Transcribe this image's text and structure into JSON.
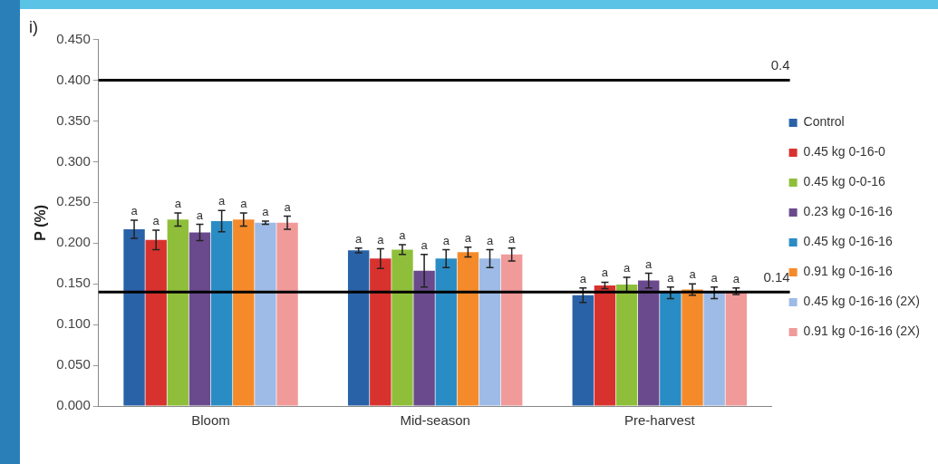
{
  "chart_data": {
    "type": "bar",
    "title": "i)",
    "ylabel": "P (%)",
    "categories": [
      "Bloom",
      "Mid-season",
      "Pre-harvest"
    ],
    "series": [
      {
        "name": "Control",
        "color": "#2a62a8",
        "values": [
          0.217,
          0.191,
          0.136
        ],
        "errors": [
          0.011,
          0.003,
          0.009
        ],
        "value_labels": [
          "a",
          "a",
          "a"
        ]
      },
      {
        "name": "0.45 kg 0-16-0",
        "color": "#d8322f",
        "values": [
          0.204,
          0.181,
          0.148
        ],
        "errors": [
          0.012,
          0.012,
          0.004
        ],
        "value_labels": [
          "a",
          "a",
          "a"
        ]
      },
      {
        "name": "0.45 kg 0-0-16",
        "color": "#8fbf3a",
        "values": [
          0.229,
          0.192,
          0.149
        ],
        "errors": [
          0.008,
          0.006,
          0.009
        ],
        "value_labels": [
          "a",
          "a",
          "a"
        ]
      },
      {
        "name": "0.23 kg 0-16-16",
        "color": "#6a4a8c",
        "values": [
          0.213,
          0.166,
          0.154
        ],
        "errors": [
          0.01,
          0.02,
          0.009
        ],
        "value_labels": [
          "a",
          "a",
          "a"
        ]
      },
      {
        "name": "0.45 kg 0-16-16",
        "color": "#2a8cc4",
        "values": [
          0.227,
          0.181,
          0.139
        ],
        "errors": [
          0.013,
          0.011,
          0.007
        ],
        "value_labels": [
          "a",
          "a",
          "a"
        ]
      },
      {
        "name": "0.91 kg 0-16-16",
        "color": "#f58a2a",
        "values": [
          0.229,
          0.189,
          0.143
        ],
        "errors": [
          0.008,
          0.006,
          0.007
        ],
        "value_labels": [
          "a",
          "a",
          "a"
        ]
      },
      {
        "name": "0.45 kg 0-16-16 (2X)",
        "color": "#9dbbe6",
        "values": [
          0.225,
          0.181,
          0.139
        ],
        "errors": [
          0.002,
          0.011,
          0.007
        ],
        "value_labels": [
          "a",
          "a",
          "a"
        ]
      },
      {
        "name": "0.91 kg 0-16-16 (2X)",
        "color": "#f09a9a",
        "values": [
          0.225,
          0.186,
          0.141
        ],
        "errors": [
          0.008,
          0.008,
          0.004
        ],
        "value_labels": [
          "a",
          "a",
          "a"
        ]
      }
    ],
    "ylim": [
      0,
      0.45
    ],
    "yticks": [
      {
        "value": 0,
        "label": "0.000"
      },
      {
        "value": 0.05,
        "label": "0.050"
      },
      {
        "value": 0.1,
        "label": "0.100"
      },
      {
        "value": 0.15,
        "label": "0.150"
      },
      {
        "value": 0.2,
        "label": "0.200"
      },
      {
        "value": 0.25,
        "label": "0.250"
      },
      {
        "value": 0.3,
        "label": "0.300"
      },
      {
        "value": 0.35,
        "label": "0.350"
      },
      {
        "value": 0.4,
        "label": "0.400"
      },
      {
        "value": 0.45,
        "label": "0.450"
      }
    ],
    "ref_lines": [
      {
        "axis": "y",
        "value": 0.4,
        "label": "0.4",
        "color": "#000000"
      },
      {
        "axis": "y",
        "value": 0.14,
        "label": "0.14",
        "color": "#000000"
      }
    ],
    "grid": false,
    "legend": "right"
  }
}
